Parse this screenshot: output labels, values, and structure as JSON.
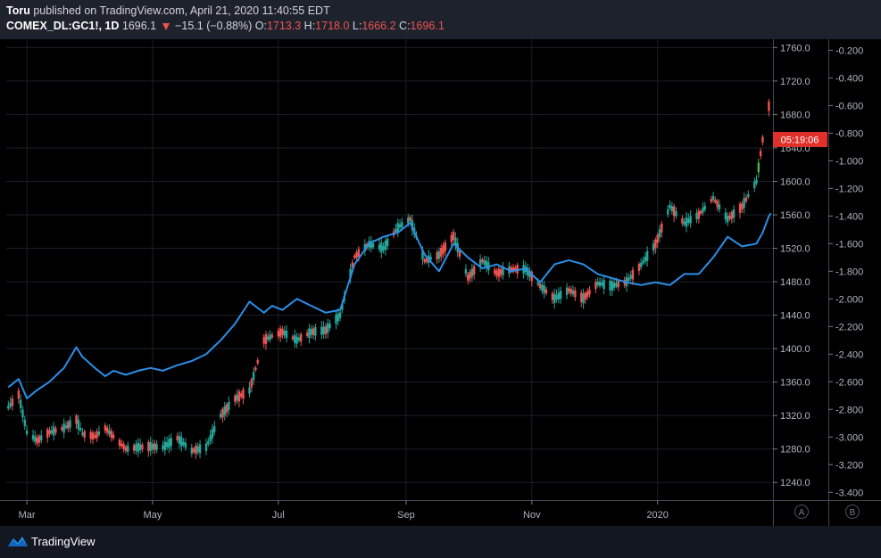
{
  "header": {
    "author": "Toru",
    "published": "published on TradingView.com, April 21, 2020 11:40:55 EDT",
    "symbol": "COMEX_DL:GC1!, 1D",
    "last": "1696.1",
    "change": "−15.1 (−0.88%)",
    "o_label": "O:",
    "o_value": "1713.3",
    "h_label": "H:",
    "h_value": "1718.0",
    "l_label": "L:",
    "l_value": "1666.2",
    "c_label": "C:",
    "c_value": "1696.1"
  },
  "price_badge": "05:19:06",
  "scale_buttons": [
    "A",
    "B"
  ],
  "footer": {
    "brand": "TradingView"
  },
  "colors": {
    "up": "#26a69a",
    "upbright": "#4caf50",
    "down": "#ef5350",
    "line": "#2a8fe8",
    "badge": "#e0302a"
  },
  "chart_data": {
    "type": "line",
    "title": "",
    "xlabel": "",
    "ylabel": "",
    "x_ticks": [
      "Mar",
      "May",
      "Jul",
      "Sep",
      "Nov",
      "2020"
    ],
    "y_ticks_left": [
      "1760.0",
      "1720.0",
      "1680.0",
      "1640.0",
      "1600.0",
      "1560.0",
      "1520.0",
      "1480.0",
      "1440.0",
      "1400.0",
      "1360.0",
      "1320.0",
      "1280.0",
      "1240.0"
    ],
    "y_ticks_right": [
      "-0.200",
      "-0.400",
      "-0.600",
      "-0.800",
      "-1.000",
      "-1.200",
      "-1.400",
      "-1.600",
      "-1.800",
      "-2.000",
      "-2.200",
      "-2.400",
      "-2.600",
      "-2.800",
      "-3.000",
      "-3.200",
      "-3.400"
    ],
    "ylim_left": [
      1220,
      1770
    ],
    "ylim_right": [
      -3.45,
      -0.12
    ],
    "series": [
      {
        "name": "",
        "type": "candlestick",
        "points": [
          [
            "2019-02-20",
            1330
          ],
          [
            "2019-02-25",
            1345
          ],
          [
            "2019-03-01",
            1300
          ],
          [
            "2019-03-06",
            1290
          ],
          [
            "2019-03-12",
            1300
          ],
          [
            "2019-03-19",
            1305
          ],
          [
            "2019-03-25",
            1315
          ],
          [
            "2019-03-28",
            1298
          ],
          [
            "2019-04-03",
            1295
          ],
          [
            "2019-04-08",
            1305
          ],
          [
            "2019-04-12",
            1295
          ],
          [
            "2019-04-18",
            1280
          ],
          [
            "2019-04-24",
            1282
          ],
          [
            "2019-04-30",
            1283
          ],
          [
            "2019-05-06",
            1282
          ],
          [
            "2019-05-13",
            1293
          ],
          [
            "2019-05-20",
            1278
          ],
          [
            "2019-05-27",
            1282
          ],
          [
            "2019-06-03",
            1320
          ],
          [
            "2019-06-10",
            1340
          ],
          [
            "2019-06-17",
            1350
          ],
          [
            "2019-06-24",
            1410
          ],
          [
            "2019-06-28",
            1415
          ],
          [
            "2019-07-03",
            1420
          ],
          [
            "2019-07-10",
            1410
          ],
          [
            "2019-07-17",
            1420
          ],
          [
            "2019-07-24",
            1422
          ],
          [
            "2019-07-31",
            1440
          ],
          [
            "2019-08-07",
            1510
          ],
          [
            "2019-08-14",
            1525
          ],
          [
            "2019-08-21",
            1520
          ],
          [
            "2019-08-28",
            1545
          ],
          [
            "2019-09-03",
            1555
          ],
          [
            "2019-09-10",
            1505
          ],
          [
            "2019-09-17",
            1512
          ],
          [
            "2019-09-24",
            1535
          ],
          [
            "2019-10-01",
            1485
          ],
          [
            "2019-10-08",
            1505
          ],
          [
            "2019-10-15",
            1490
          ],
          [
            "2019-10-22",
            1495
          ],
          [
            "2019-10-29",
            1495
          ],
          [
            "2019-11-05",
            1475
          ],
          [
            "2019-11-12",
            1460
          ],
          [
            "2019-11-19",
            1470
          ],
          [
            "2019-11-26",
            1460
          ],
          [
            "2019-12-03",
            1478
          ],
          [
            "2019-12-10",
            1475
          ],
          [
            "2019-12-17",
            1480
          ],
          [
            "2019-12-24",
            1500
          ],
          [
            "2019-12-31",
            1525
          ],
          [
            "2020-01-07",
            1570
          ],
          [
            "2020-01-14",
            1550
          ],
          [
            "2020-01-21",
            1560
          ],
          [
            "2020-01-28",
            1580
          ],
          [
            "2020-02-04",
            1555
          ],
          [
            "2020-02-11",
            1570
          ],
          [
            "2020-02-18",
            1600
          ],
          [
            "2020-02-21",
            1650
          ],
          [
            "2020-02-24",
            1690
          ],
          [
            "2020-02-25",
            1660
          ]
        ]
      },
      {
        "name": "",
        "type": "line",
        "axis": "right",
        "points": [
          [
            "2019-02-20",
            -2.64
          ],
          [
            "2019-02-25",
            -2.58
          ],
          [
            "2019-03-01",
            -2.72
          ],
          [
            "2019-03-06",
            -2.66
          ],
          [
            "2019-03-12",
            -2.6
          ],
          [
            "2019-03-19",
            -2.5
          ],
          [
            "2019-03-25",
            -2.35
          ],
          [
            "2019-03-28",
            -2.42
          ],
          [
            "2019-04-03",
            -2.5
          ],
          [
            "2019-04-08",
            -2.56
          ],
          [
            "2019-04-12",
            -2.52
          ],
          [
            "2019-04-18",
            -2.55
          ],
          [
            "2019-04-24",
            -2.52
          ],
          [
            "2019-04-30",
            -2.5
          ],
          [
            "2019-05-06",
            -2.52
          ],
          [
            "2019-05-13",
            -2.48
          ],
          [
            "2019-05-20",
            -2.45
          ],
          [
            "2019-05-27",
            -2.4
          ],
          [
            "2019-06-03",
            -2.3
          ],
          [
            "2019-06-10",
            -2.18
          ],
          [
            "2019-06-17",
            -2.02
          ],
          [
            "2019-06-24",
            -2.1
          ],
          [
            "2019-06-28",
            -2.05
          ],
          [
            "2019-07-03",
            -2.08
          ],
          [
            "2019-07-10",
            -2.0
          ],
          [
            "2019-07-17",
            -2.05
          ],
          [
            "2019-07-24",
            -2.1
          ],
          [
            "2019-07-31",
            -2.08
          ],
          [
            "2019-08-07",
            -1.75
          ],
          [
            "2019-08-14",
            -1.6
          ],
          [
            "2019-08-21",
            -1.55
          ],
          [
            "2019-08-28",
            -1.52
          ],
          [
            "2019-09-03",
            -1.45
          ],
          [
            "2019-09-10",
            -1.68
          ],
          [
            "2019-09-17",
            -1.8
          ],
          [
            "2019-09-24",
            -1.6
          ],
          [
            "2019-10-01",
            -1.7
          ],
          [
            "2019-10-08",
            -1.78
          ],
          [
            "2019-10-15",
            -1.75
          ],
          [
            "2019-10-22",
            -1.8
          ],
          [
            "2019-10-29",
            -1.78
          ],
          [
            "2019-11-05",
            -1.88
          ],
          [
            "2019-11-12",
            -1.75
          ],
          [
            "2019-11-19",
            -1.72
          ],
          [
            "2019-11-26",
            -1.75
          ],
          [
            "2019-12-03",
            -1.82
          ],
          [
            "2019-12-10",
            -1.85
          ],
          [
            "2019-12-17",
            -1.88
          ],
          [
            "2019-12-24",
            -1.9
          ],
          [
            "2019-12-31",
            -1.88
          ],
          [
            "2020-01-07",
            -1.9
          ],
          [
            "2020-01-14",
            -1.82
          ],
          [
            "2020-01-21",
            -1.82
          ],
          [
            "2020-01-28",
            -1.7
          ],
          [
            "2020-02-04",
            -1.55
          ],
          [
            "2020-02-11",
            -1.62
          ],
          [
            "2020-02-18",
            -1.6
          ],
          [
            "2020-02-21",
            -1.52
          ],
          [
            "2020-02-24",
            -1.4
          ],
          [
            "2020-02-25",
            -1.38
          ]
        ]
      }
    ],
    "grid": true,
    "legend": "none"
  }
}
